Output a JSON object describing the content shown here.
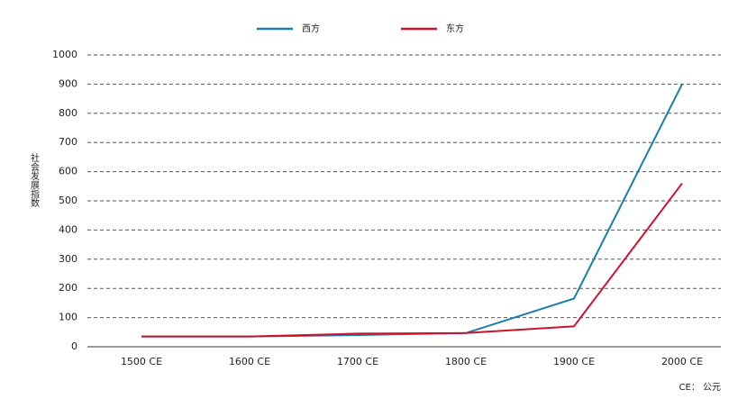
{
  "chart_data": {
    "type": "line",
    "y_label": "社会发展指数",
    "note": "CE： 公元",
    "categories": [
      "1500 CE",
      "1600 CE",
      "1700 CE",
      "1800 CE",
      "1900 CE",
      "2000 CE"
    ],
    "series": [
      {
        "name": "西方",
        "color": "#1a7cb0",
        "values": [
          35,
          35,
          40,
          47,
          165,
          900
        ]
      },
      {
        "name": "东方",
        "color": "#d0112b",
        "values": [
          35,
          35,
          45,
          47,
          70,
          560
        ]
      }
    ],
    "ylim": [
      0,
      1000
    ],
    "yticks": [
      0,
      100,
      200,
      300,
      400,
      500,
      600,
      700,
      800,
      900,
      1000
    ],
    "grid": true
  }
}
